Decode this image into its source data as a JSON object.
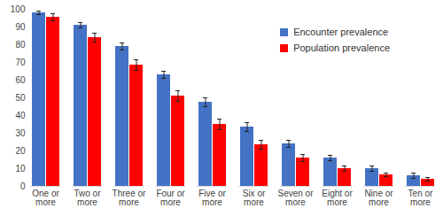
{
  "chart_data": {
    "type": "bar",
    "categories": [
      "One or more",
      "Two or more",
      "Three or more",
      "Four or more",
      "Five or more",
      "Six or more",
      "Seven or more",
      "Eight or more",
      "Nine or more",
      "Ten or more"
    ],
    "series": [
      {
        "name": "Encounter prevalence",
        "color": "#4472c4",
        "values": [
          98,
          91,
          79,
          63,
          47.5,
          33.5,
          24,
          16,
          10,
          6
        ],
        "errors": [
          1,
          1.5,
          2,
          2,
          2.5,
          2.5,
          2,
          1.5,
          1.5,
          1.5
        ]
      },
      {
        "name": "Population prevalence",
        "color": "#ff0000",
        "values": [
          95.5,
          84,
          68.5,
          51,
          35,
          23.5,
          16,
          10,
          6.5,
          4
        ],
        "errors": [
          2,
          2.5,
          3,
          3,
          3,
          2.5,
          2,
          1.5,
          1,
          1
        ]
      }
    ],
    "ylim": [
      0,
      100
    ],
    "yticks": [
      0,
      10,
      20,
      30,
      40,
      50,
      60,
      70,
      80,
      90,
      100
    ],
    "grid": false,
    "legend": "upper right"
  }
}
